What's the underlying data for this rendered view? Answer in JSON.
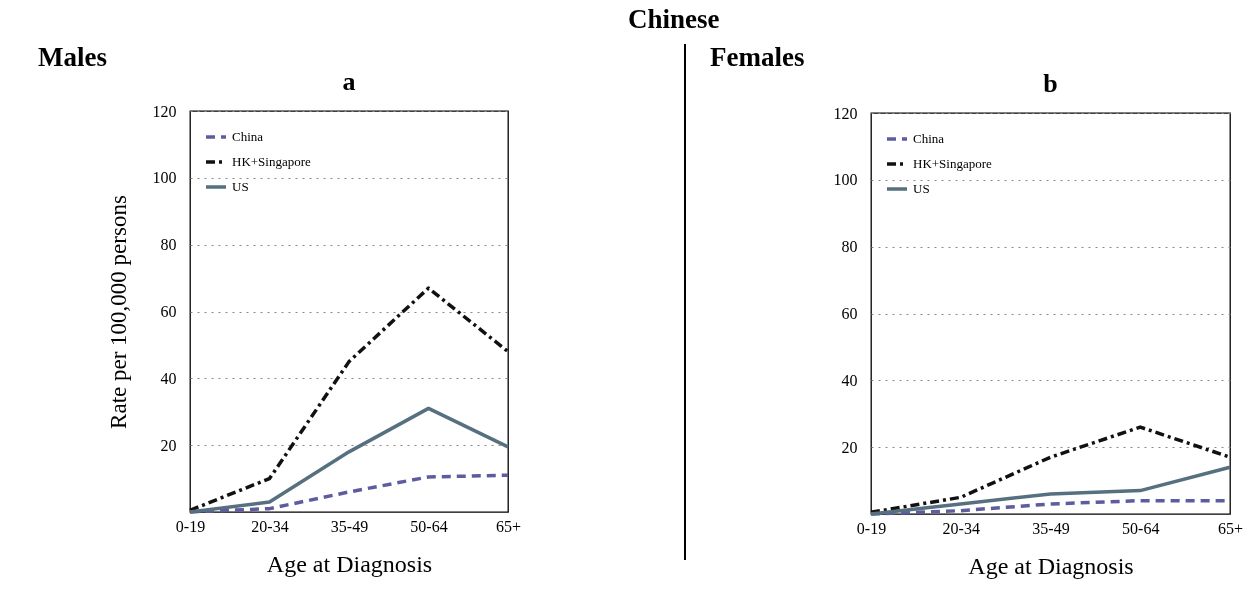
{
  "chart_data": [
    {
      "type": "line",
      "title": "a",
      "annotations": [
        "Chinese",
        "Males"
      ],
      "xlabel": "Age at Diagnosis",
      "ylabel": "Rate per 100,000 persons",
      "categories": [
        "0-19",
        "20-34",
        "35-49",
        "50-64",
        "65+"
      ],
      "ylim": [
        0,
        120
      ],
      "yticks": [
        20,
        40,
        60,
        80,
        100,
        120
      ],
      "grid": "y",
      "legend": "top left",
      "series": [
        {
          "name": "China",
          "color": "#5c5c9e",
          "line_style": "dashed",
          "values": [
            0,
            1,
            6,
            10.5,
            11
          ]
        },
        {
          "name": "HK+Singapore",
          "color": "#111111",
          "line_style": "dashdot",
          "values": [
            0.5,
            10,
            45,
            67,
            48
          ]
        },
        {
          "name": "US",
          "color": "#56707f",
          "line_style": "solid",
          "values": [
            0,
            3,
            18,
            31,
            19.5
          ]
        }
      ]
    },
    {
      "type": "line",
      "title": "b",
      "annotations": [
        "Females"
      ],
      "xlabel": "Age at Diagnosis",
      "categories": [
        "0-19",
        "20-34",
        "35-49",
        "50-64",
        "65+"
      ],
      "ylim": [
        0,
        120
      ],
      "yticks": [
        20,
        40,
        60,
        80,
        100,
        120
      ],
      "grid": "y",
      "legend": "top left",
      "series": [
        {
          "name": "China",
          "color": "#5c5c9e",
          "line_style": "dashed",
          "values": [
            0,
            1,
            3,
            4,
            4
          ]
        },
        {
          "name": "HK+Singapore",
          "color": "#111111",
          "line_style": "dashdot",
          "values": [
            0.5,
            5,
            17,
            26,
            17
          ]
        },
        {
          "name": "US",
          "color": "#56707f",
          "line_style": "solid",
          "values": [
            0,
            3,
            6,
            7,
            14
          ]
        }
      ]
    }
  ]
}
